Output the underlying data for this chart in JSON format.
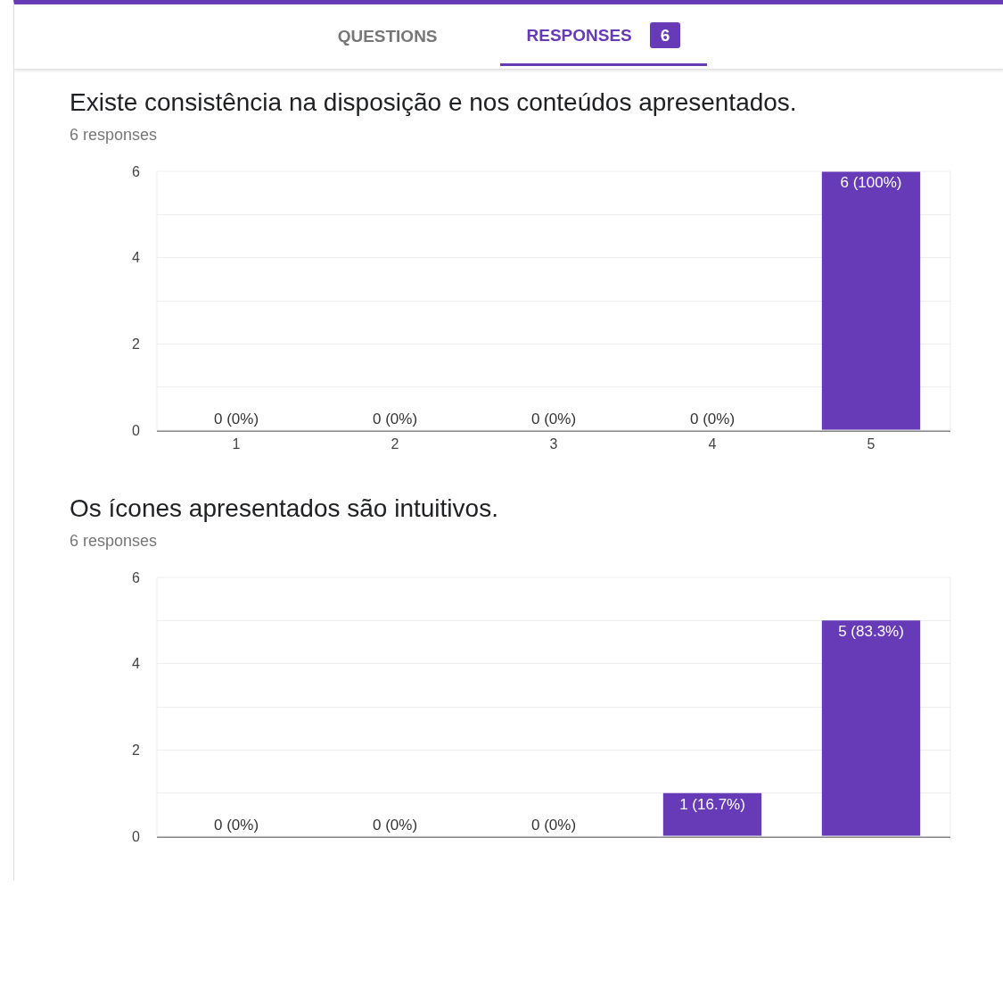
{
  "chart_data": [
    {
      "type": "other",
      "annotations": [
        "QUESTIONS",
        "RESPONSES",
        "6"
      ]
    },
    {
      "type": "bar",
      "title": "Existe consistência na disposição e nos conteúdos apresentados.",
      "subtitle": "6 responses",
      "categories": [
        "1",
        "2",
        "3",
        "4",
        "5"
      ],
      "values": [
        0,
        0,
        0,
        0,
        6
      ],
      "color": "#673ab7",
      "value_labels": [
        "0 (0%)",
        "0 (0%)",
        "0 (0%)",
        "0 (0%)",
        "6 (100%)"
      ],
      "ylim": [
        0,
        6
      ],
      "yticks": [
        0,
        {
          "value": 1,
          "label": null
        },
        2,
        {
          "value": 3,
          "label": null
        },
        4,
        {
          "value": 5,
          "label": null
        },
        6
      ],
      "grid": true
    },
    {
      "type": "bar",
      "title": "Os ícones apresentados são intuitivos.",
      "subtitle": "6 responses",
      "categories": [
        null,
        null,
        null,
        null,
        null
      ],
      "values": [
        0,
        0,
        0,
        1,
        5
      ],
      "color": "#673ab7",
      "value_labels": [
        "0 (0%)",
        "0 (0%)",
        "0 (0%)",
        "1 (16.7%)",
        "5 (83.3%)"
      ],
      "ylim": [
        0,
        6
      ],
      "yticks": [
        0,
        {
          "value": 1,
          "label": null
        },
        2,
        {
          "value": 3,
          "label": null
        },
        4,
        {
          "value": 5,
          "label": null
        },
        6
      ],
      "grid": true
    }
  ]
}
